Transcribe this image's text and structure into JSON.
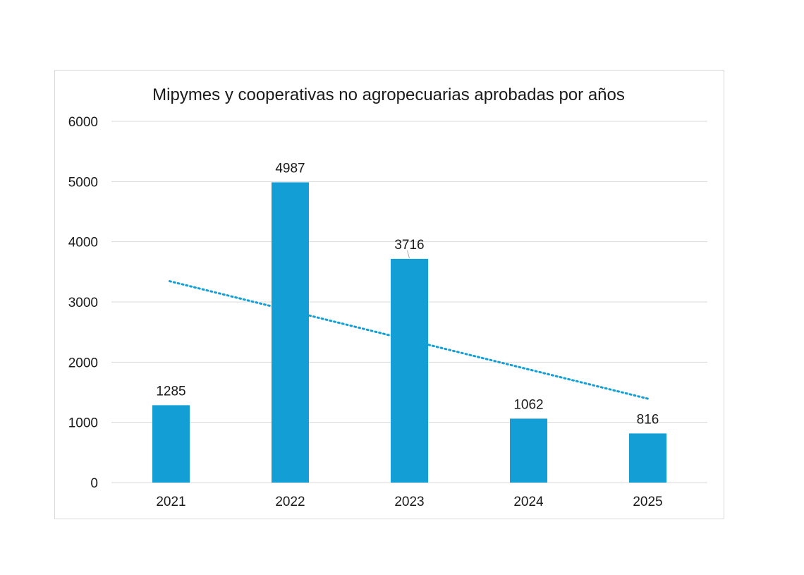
{
  "chart_data": {
    "type": "bar",
    "title": "Mipymes y cooperativas no agropecuarias aprobadas por años",
    "categories": [
      "2021",
      "2022",
      "2023",
      "2024",
      "2025"
    ],
    "series": [
      {
        "values": [
          1285,
          4987,
          3716,
          1062,
          816
        ]
      }
    ],
    "data_labels": [
      "1285",
      "4987",
      "3716",
      "1062",
      "816"
    ],
    "y_ticks": [
      "0",
      "1000",
      "2000",
      "3000",
      "4000",
      "5000",
      "6000"
    ],
    "ylim": [
      0,
      6000
    ],
    "xlabel": "",
    "ylabel": "",
    "grid": true,
    "legend": "none",
    "trendline": {
      "type": "linear",
      "style": "dotted",
      "start_value": 3345,
      "end_value": 1388
    },
    "colors": {
      "bar": "#139fd6",
      "trendline": "#139fd6",
      "grid": "#d9d9d9"
    }
  }
}
